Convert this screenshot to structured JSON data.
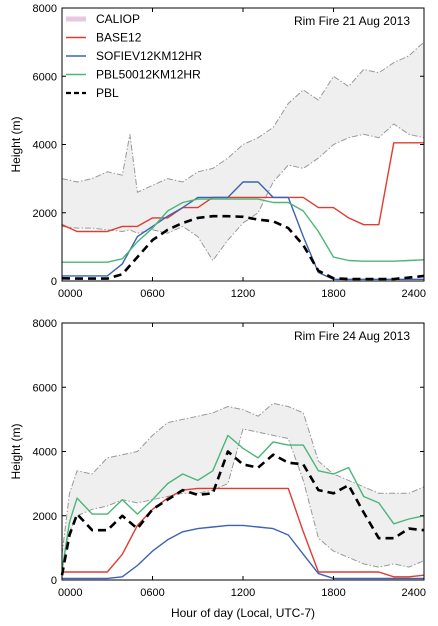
{
  "figure": {
    "xlabel": "Hour of day (Local, UTC-7)"
  },
  "chart_data": [
    {
      "type": "line",
      "title": "Rim Fire 21 Aug 2013",
      "xlabel": "",
      "ylabel": "Height (m)",
      "xlim": [
        0,
        24
      ],
      "ylim": [
        0,
        8000
      ],
      "x_tick_labels": [
        "0000",
        "0600",
        "1200",
        "1800",
        "2400"
      ],
      "x_tick_values": [
        0,
        6,
        12,
        18,
        24
      ],
      "y_ticks": [
        0,
        2000,
        4000,
        6000,
        8000
      ],
      "legend_position": "top-left",
      "band": {
        "name": "CALIOP",
        "color": "#e8c8e0",
        "x": [
          0,
          1,
          2,
          3,
          4,
          4.5,
          5,
          6,
          7,
          8,
          9,
          10,
          11,
          12,
          13,
          14,
          15,
          16,
          17,
          18,
          19,
          20,
          21,
          22,
          23,
          24
        ],
        "upper": [
          3000,
          2900,
          3000,
          3200,
          3100,
          4300,
          2600,
          2800,
          3000,
          2900,
          3200,
          3300,
          3600,
          4000,
          4200,
          4500,
          5200,
          5600,
          5300,
          6000,
          5700,
          6200,
          6100,
          6400,
          6600,
          7000
        ],
        "lower": [
          1600,
          1550,
          1550,
          1500,
          1450,
          1500,
          1400,
          1500,
          1400,
          1600,
          1300,
          600,
          1200,
          1700,
          2000,
          2900,
          3400,
          3300,
          3600,
          4000,
          4200,
          4300,
          4200,
          4600,
          4300,
          4200
        ]
      },
      "series": [
        {
          "name": "BASE12",
          "color": "#e03c31",
          "style": "solid",
          "x": [
            0,
            1,
            2,
            3,
            4,
            5,
            6,
            7,
            8,
            9,
            10,
            11,
            12,
            13,
            14,
            15,
            16,
            17,
            18,
            19,
            20,
            21,
            22,
            23,
            24
          ],
          "y": [
            1650,
            1450,
            1450,
            1450,
            1600,
            1600,
            1850,
            1850,
            2150,
            2150,
            2450,
            2450,
            2450,
            2450,
            2450,
            2450,
            2450,
            2150,
            2150,
            1850,
            1650,
            1650,
            4050,
            4050,
            4050
          ]
        },
        {
          "name": "SOFIEV12KM12HR",
          "color": "#3b62b5",
          "style": "solid",
          "x": [
            0,
            1,
            2,
            3,
            4,
            5,
            6,
            7,
            8,
            9,
            10,
            11,
            12,
            13,
            14,
            15,
            16,
            17,
            18,
            19,
            20,
            21,
            22,
            23,
            24
          ],
          "y": [
            150,
            150,
            150,
            150,
            500,
            1300,
            1600,
            1900,
            2150,
            2450,
            2450,
            2450,
            2900,
            2900,
            2450,
            2450,
            1300,
            250,
            50,
            50,
            50,
            50,
            50,
            50,
            50
          ]
        },
        {
          "name": "PBL50012KM12HR",
          "color": "#4cb578",
          "style": "solid",
          "x": [
            0,
            1,
            2,
            3,
            4,
            5,
            6,
            7,
            8,
            9,
            10,
            11,
            12,
            13,
            14,
            15,
            16,
            17,
            18,
            19,
            20,
            21,
            22,
            23,
            24
          ],
          "y": [
            550,
            550,
            550,
            550,
            650,
            1150,
            1550,
            2050,
            2300,
            2400,
            2400,
            2400,
            2400,
            2400,
            2300,
            2300,
            2050,
            1450,
            700,
            600,
            580,
            580,
            580,
            600,
            620
          ]
        },
        {
          "name": "PBL",
          "color": "#000000",
          "style": "dashed",
          "x": [
            0,
            1,
            2,
            3,
            4,
            5,
            6,
            7,
            8,
            9,
            10,
            11,
            12,
            13,
            14,
            15,
            16,
            17,
            18,
            19,
            20,
            21,
            22,
            23,
            24
          ],
          "y": [
            80,
            70,
            70,
            70,
            200,
            700,
            1200,
            1500,
            1700,
            1850,
            1900,
            1900,
            1880,
            1800,
            1750,
            1550,
            1050,
            300,
            80,
            60,
            60,
            60,
            60,
            100,
            150
          ]
        }
      ]
    },
    {
      "type": "line",
      "title": "Rim Fire 24 Aug 2013",
      "xlabel": "Hour of day (Local, UTC-7)",
      "ylabel": "Height (m)",
      "xlim": [
        0,
        24
      ],
      "ylim": [
        0,
        8000
      ],
      "x_tick_labels": [
        "0000",
        "0600",
        "1200",
        "1800",
        "2400"
      ],
      "x_tick_values": [
        0,
        6,
        12,
        18,
        24
      ],
      "y_ticks": [
        0,
        2000,
        4000,
        6000,
        8000
      ],
      "band": {
        "name": "CALIOP",
        "color": "#e8c8e0",
        "x": [
          0,
          0.5,
          1,
          2,
          3,
          4,
          5,
          6,
          7,
          8,
          9,
          10,
          11,
          12,
          13,
          14,
          15,
          16,
          17,
          18,
          19,
          20,
          21,
          22,
          23,
          24
        ],
        "upper": [
          800,
          2700,
          3400,
          3300,
          3800,
          3900,
          4000,
          4500,
          4900,
          5000,
          5100,
          5200,
          5400,
          5300,
          5100,
          5500,
          5400,
          5200,
          3700,
          3300,
          3100,
          2900,
          2700,
          2700,
          2700,
          2900
        ],
        "lower": [
          300,
          1500,
          2000,
          2200,
          2300,
          2500,
          2400,
          2500,
          2600,
          2700,
          2700,
          2800,
          3000,
          4700,
          4600,
          4500,
          4400,
          3100,
          1300,
          900,
          700,
          500,
          400,
          500,
          400,
          600
        ]
      },
      "series": [
        {
          "name": "BASE12",
          "color": "#e03c31",
          "style": "solid",
          "x": [
            0,
            1,
            2,
            3,
            4,
            5,
            6,
            7,
            8,
            9,
            10,
            11,
            12,
            13,
            14,
            15,
            16,
            17,
            18,
            19,
            20,
            21,
            22,
            23,
            24
          ],
          "y": [
            250,
            250,
            250,
            250,
            800,
            1700,
            2200,
            2550,
            2800,
            2850,
            2850,
            2850,
            2850,
            2850,
            2850,
            2850,
            1500,
            250,
            250,
            250,
            250,
            250,
            100,
            100,
            150
          ]
        },
        {
          "name": "SOFIEV12KM12HR",
          "color": "#3b62b5",
          "style": "solid",
          "x": [
            0,
            1,
            2,
            3,
            4,
            5,
            6,
            7,
            8,
            9,
            10,
            11,
            12,
            13,
            14,
            15,
            16,
            17,
            18,
            19,
            20,
            21,
            22,
            23,
            24
          ],
          "y": [
            50,
            50,
            50,
            50,
            100,
            450,
            900,
            1250,
            1500,
            1600,
            1650,
            1700,
            1700,
            1650,
            1600,
            1400,
            800,
            200,
            50,
            50,
            50,
            50,
            50,
            50,
            50
          ]
        },
        {
          "name": "PBL50012KM12HR",
          "color": "#4cb578",
          "style": "solid",
          "x": [
            0,
            0.5,
            1,
            2,
            3,
            4,
            5,
            6,
            7,
            8,
            9,
            10,
            11,
            12,
            13,
            14,
            15,
            16,
            17,
            18,
            19,
            20,
            21,
            22,
            23,
            24
          ],
          "y": [
            300,
            1800,
            2550,
            2050,
            2050,
            2500,
            2050,
            2500,
            3000,
            3300,
            3100,
            3400,
            4500,
            4100,
            3800,
            4300,
            4200,
            4200,
            3400,
            3300,
            3500,
            2600,
            2400,
            1750,
            1900,
            2000
          ]
        },
        {
          "name": "PBL",
          "color": "#000000",
          "style": "dashed",
          "x": [
            0,
            0.5,
            1,
            2,
            3,
            4,
            5,
            6,
            7,
            8,
            9,
            10,
            11,
            12,
            13,
            14,
            15,
            16,
            17,
            18,
            19,
            20,
            21,
            22,
            23,
            24
          ],
          "y": [
            150,
            1400,
            2050,
            1550,
            1550,
            2000,
            1600,
            2200,
            2500,
            2800,
            2650,
            2700,
            4000,
            3600,
            3500,
            3900,
            3650,
            3600,
            2800,
            2700,
            2950,
            2100,
            1300,
            1300,
            1600,
            1550
          ]
        }
      ]
    }
  ]
}
